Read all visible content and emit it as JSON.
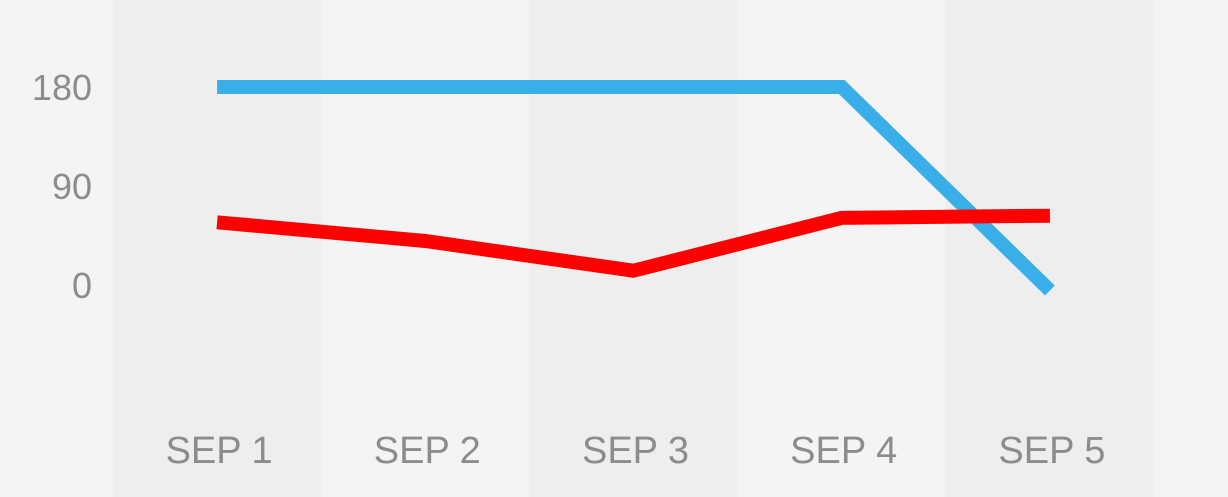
{
  "chart_data": {
    "type": "line",
    "categories": [
      "SEP 1",
      "SEP 2",
      "SEP 3",
      "SEP 4",
      "SEP 5"
    ],
    "series": [
      {
        "values": [
          180,
          180,
          180,
          180,
          -5
        ],
        "color": "#3aaee8"
      },
      {
        "values": [
          57,
          40,
          13,
          61,
          63
        ],
        "color": "#ff0000"
      }
    ],
    "y_ticks": [
      0,
      90,
      180
    ],
    "y_tick_labels": [
      "0",
      "90",
      "180"
    ],
    "ylim": [
      -90,
      180
    ],
    "colors": {
      "background": "#f4f4f4",
      "band_dark": "#eeeeee",
      "band_light": "#f4f4f4",
      "tick_text": "#8c8c8c"
    }
  }
}
